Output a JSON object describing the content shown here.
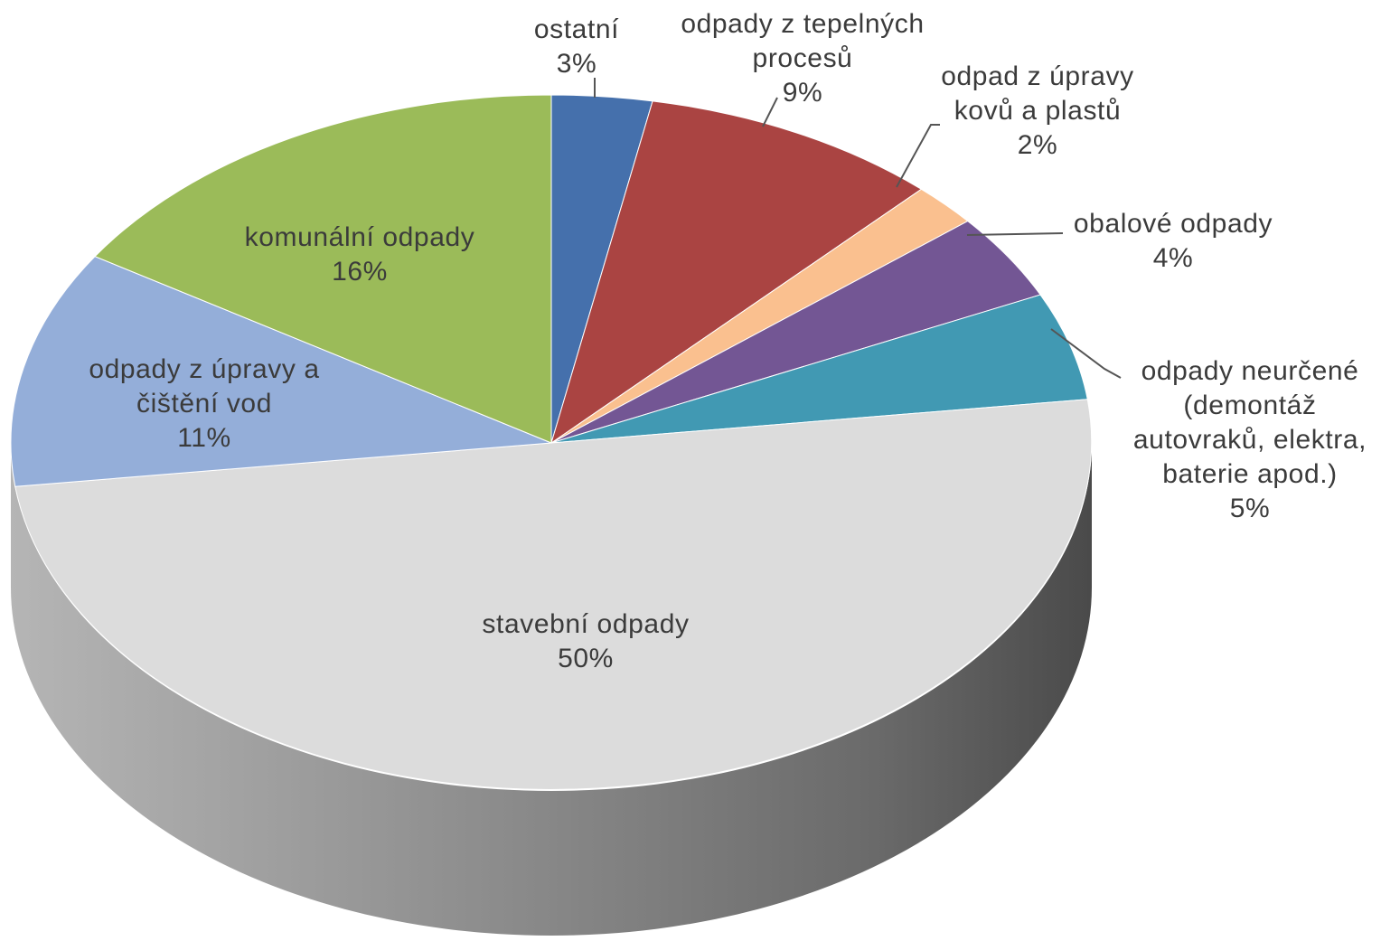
{
  "chart_data": {
    "type": "pie",
    "title": "",
    "three_d": true,
    "legend": "none",
    "slices": [
      {
        "name": "ostatní",
        "lines": [
          "ostatní"
        ],
        "value": 3,
        "value_label": "3%",
        "color": "#4570AC"
      },
      {
        "name": "odpady z tepelných procesů",
        "lines": [
          "odpady z tepelných",
          "procesů"
        ],
        "value": 9,
        "value_label": "9%",
        "color": "#AA4442"
      },
      {
        "name": "odpad z úpravy kovů a plastů",
        "lines": [
          "odpad z úpravy",
          "kovů a plastů"
        ],
        "value": 2,
        "value_label": "2%",
        "color": "#FAC08F"
      },
      {
        "name": "obalové odpady",
        "lines": [
          "obalové odpady"
        ],
        "value": 4,
        "value_label": "4%",
        "color": "#735694"
      },
      {
        "name": "odpady neurčené (demontáž autovraků, elektra, baterie apod.)",
        "lines": [
          "odpady neurčené",
          "(demontáž",
          "autovraků, elektra,",
          "baterie apod.)"
        ],
        "value": 5,
        "value_label": "5%",
        "color": "#4199B3"
      },
      {
        "name": "stavební odpady",
        "lines": [
          "stavební odpady"
        ],
        "value": 50,
        "value_label": "50%",
        "color": "#DCDCDC"
      },
      {
        "name": "odpady z úpravy a čištění vod",
        "lines": [
          "odpady z úpravy a",
          "čištění vod"
        ],
        "value": 11,
        "value_label": "11%",
        "color": "#94AED9"
      },
      {
        "name": "komunální odpady",
        "lines": [
          "komunální odpady"
        ],
        "value": 16,
        "value_label": "16%",
        "color": "#9BBB59"
      }
    ]
  }
}
